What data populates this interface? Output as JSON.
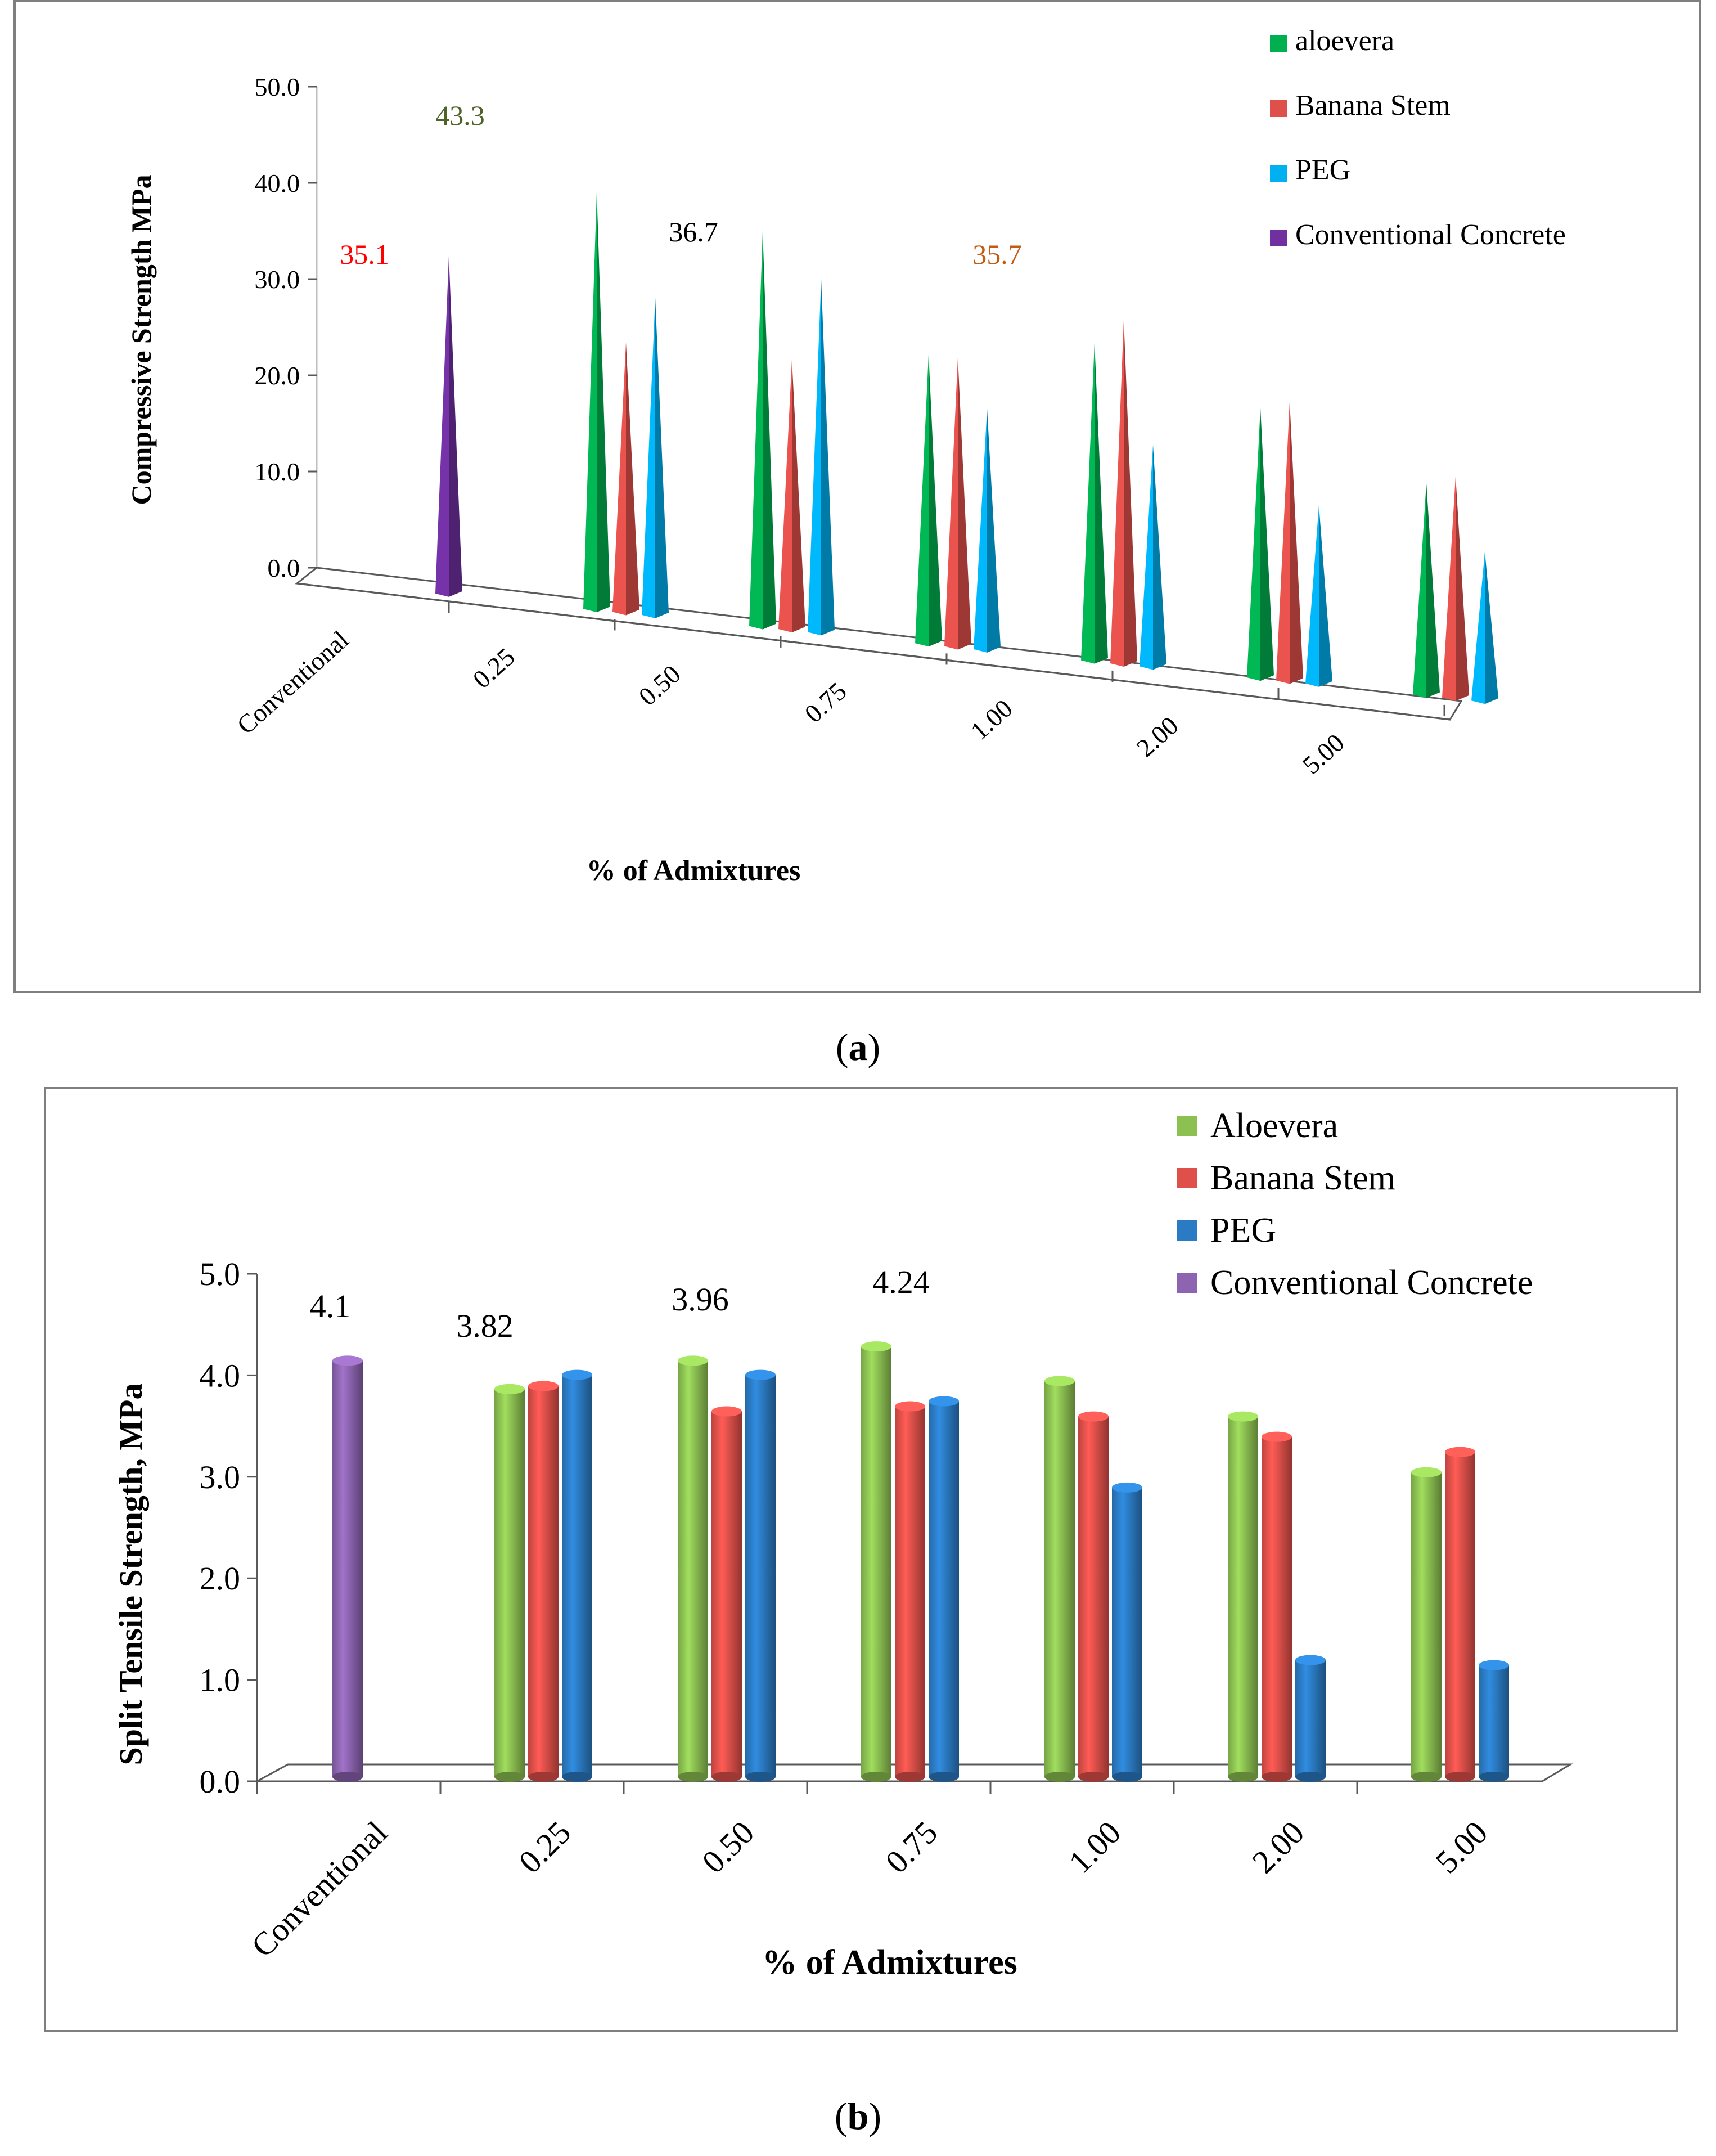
{
  "caption_a": {
    "open": "(",
    "letter": "a",
    "close": ")"
  },
  "caption_b": {
    "open": "(",
    "letter": "b",
    "close": ")"
  },
  "chart_data": [
    {
      "type": "bar",
      "variant": "3d-cone",
      "title": "",
      "xlabel": "% of Admixtures",
      "ylabel": "Compressive Strength MPa",
      "ylim": [
        0,
        50
      ],
      "y_ticks": [
        "0.0",
        "10.0",
        "20.0",
        "30.0",
        "40.0",
        "50.0"
      ],
      "categories": [
        "Conventional",
        "0.25",
        "0.50",
        "0.75",
        "1.00",
        "2.00",
        "5.00"
      ],
      "legend_position": "top-right",
      "series": [
        {
          "name": "aloevera",
          "color": "#00b050",
          "values": [
            null,
            43.3,
            41.0,
            30.0,
            33.0,
            28.0,
            22.0
          ]
        },
        {
          "name": "Banana Stem",
          "color": "#e0504a",
          "values": [
            null,
            28.0,
            28.0,
            30.0,
            35.7,
            29.0,
            23.0
          ]
        },
        {
          "name": "PEG",
          "color": "#00b0f0",
          "values": [
            null,
            33.0,
            36.7,
            25.0,
            23.0,
            18.5,
            15.5
          ]
        },
        {
          "name": "Conventional Concrete",
          "color": "#7030a0",
          "values": [
            35.1,
            null,
            null,
            null,
            null,
            null,
            null
          ]
        }
      ],
      "annotations": [
        {
          "text": "35.1",
          "color": "#ff0000"
        },
        {
          "text": "43.3",
          "color": "#4f6228"
        },
        {
          "text": "36.7",
          "color": "#000000"
        },
        {
          "text": "35.7",
          "color": "#c55a11"
        }
      ]
    },
    {
      "type": "bar",
      "variant": "3d-cylinder",
      "title": "",
      "xlabel": "% of Admixtures",
      "ylabel": "Split Tensile Strength, MPa",
      "ylim": [
        0,
        5
      ],
      "y_ticks": [
        "0.0",
        "1.0",
        "2.0",
        "3.0",
        "4.0",
        "5.0"
      ],
      "categories": [
        "Conventional",
        "0.25",
        "0.50",
        "0.75",
        "1.00",
        "2.00",
        "5.00"
      ],
      "legend_position": "top-right",
      "series": [
        {
          "name": "Aloevera",
          "color": "#8cc152",
          "values": [
            null,
            3.82,
            4.1,
            4.24,
            3.9,
            3.55,
            3.0
          ]
        },
        {
          "name": "Banana Stem",
          "color": "#e0504a",
          "values": [
            null,
            3.85,
            3.6,
            3.65,
            3.55,
            3.35,
            3.2
          ]
        },
        {
          "name": "PEG",
          "color": "#2b7bc4",
          "values": [
            null,
            3.96,
            3.96,
            3.7,
            2.85,
            1.15,
            1.1
          ]
        },
        {
          "name": "Conventional Concrete",
          "color": "#8c64b0",
          "values": [
            4.1,
            null,
            null,
            null,
            null,
            null,
            null
          ]
        }
      ],
      "annotations": [
        {
          "text": "4.1",
          "color": "#000000"
        },
        {
          "text": "3.82",
          "color": "#000000"
        },
        {
          "text": "3.96",
          "color": "#000000"
        },
        {
          "text": "4.24",
          "color": "#000000"
        }
      ]
    }
  ]
}
